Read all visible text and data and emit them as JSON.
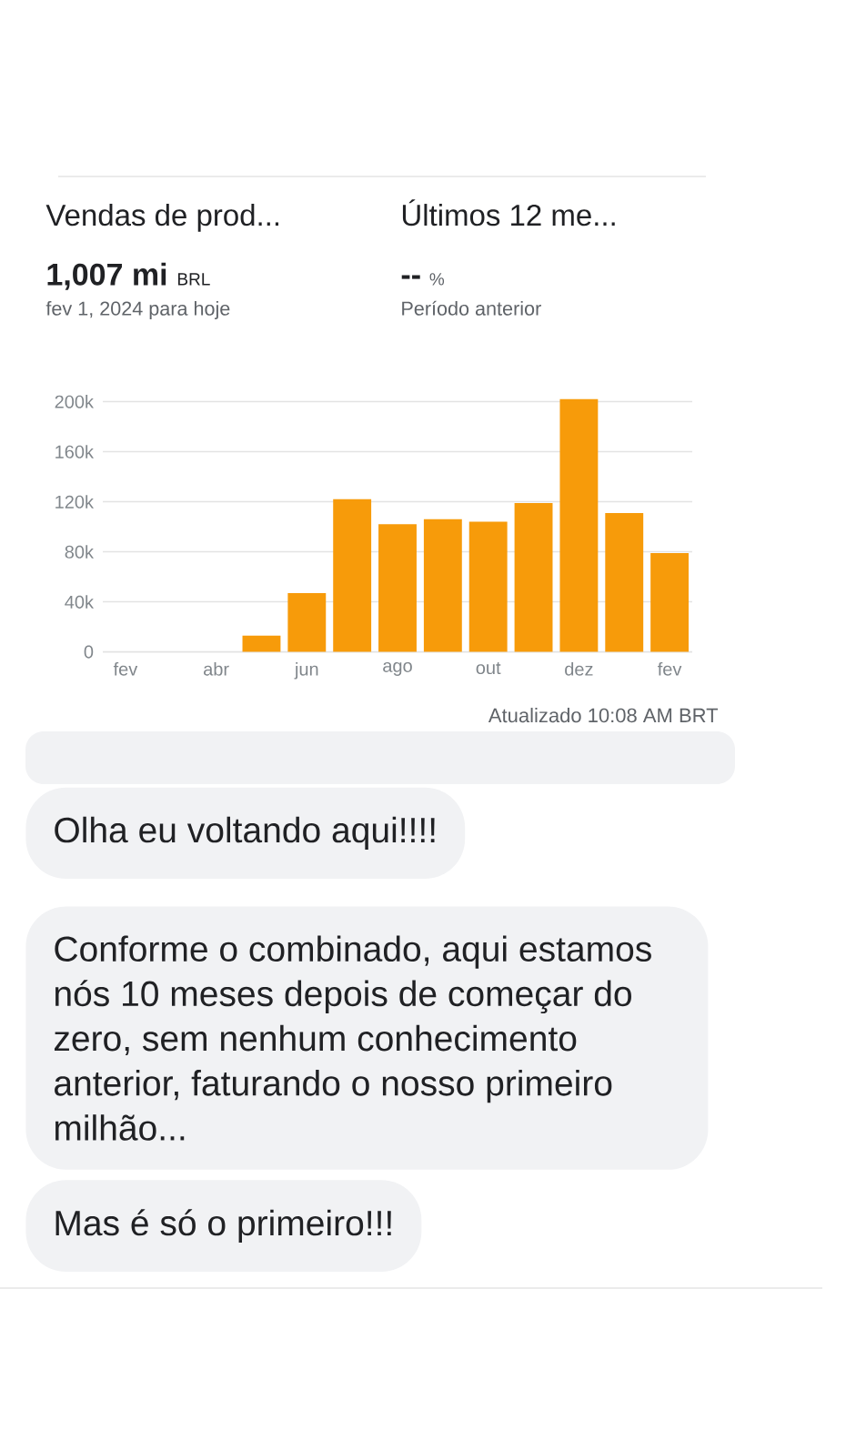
{
  "chart_data": {
    "type": "bar",
    "title": "Vendas de prod...",
    "subtitle": "Últimos 12 me...",
    "categories": [
      "fev",
      null,
      "abr",
      null,
      "jun",
      null,
      "ago",
      null,
      "out",
      null,
      "dez",
      null,
      "fev"
    ],
    "values": [
      0,
      0,
      0,
      13000,
      47000,
      122000,
      102000,
      106000,
      104000,
      119000,
      202000,
      111000,
      79000
    ],
    "color": "#f79b0a",
    "ylim": [
      0,
      205000
    ],
    "yticks": [
      0,
      {
        "value": 40000,
        "label": "40k"
      },
      {
        "value": 80000,
        "label": "80k"
      },
      {
        "value": 120000,
        "label": "120k"
      },
      {
        "value": 160000,
        "label": "160k"
      },
      {
        "value": 200000,
        "label": "200k"
      }
    ],
    "grid": "y",
    "annotations": [
      "1,007 mi",
      "BRL",
      "fev 1, 2024 para hoje",
      "--",
      "%",
      "Período anterior",
      "Atualizado 10:08 AM BRT",
      "Olha eu voltando aqui!!!!",
      "Conforme o combinado, aqui estamos nós 10 meses depois de começar do zero, sem nenhum conhecimento anterior, faturando o nosso primeiro milhão...",
      "Mas é só o primeiro!!!"
    ]
  }
}
